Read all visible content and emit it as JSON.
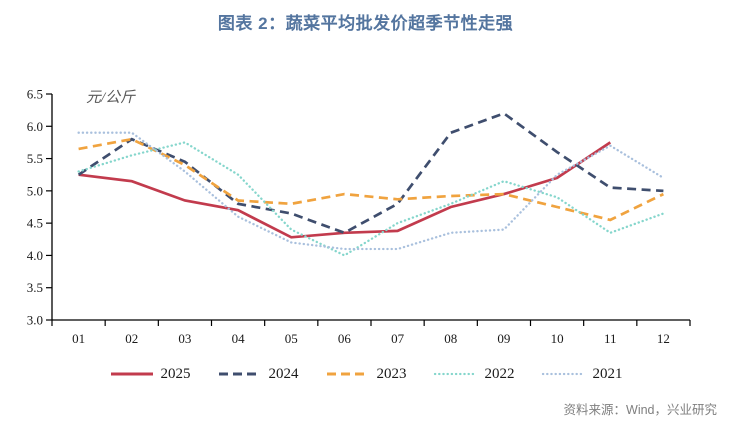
{
  "header": {
    "title": "图表 2：蔬菜平均批发价超季节性走强"
  },
  "footer": {
    "source": "资料来源：Wind，兴业研究"
  },
  "colors": {
    "title_text": "#54759F",
    "source_text": "#7F7F7F",
    "axis": "#000000",
    "unit_text": "#595959"
  },
  "chart_data": {
    "type": "line",
    "title": "图表 2：蔬菜平均批发价超季节性走强",
    "unit_label": "元/公斤",
    "xlabel": "",
    "ylabel": "元/公斤",
    "categories": [
      "01",
      "02",
      "03",
      "04",
      "05",
      "06",
      "07",
      "08",
      "09",
      "10",
      "11",
      "12"
    ],
    "ylim": [
      3.0,
      6.5
    ],
    "ytick_step": 0.5,
    "ytick_labels": [
      "3.0",
      "3.5",
      "4.0",
      "4.5",
      "5.0",
      "5.5",
      "6.0",
      "6.5"
    ],
    "grid": false,
    "legend_position": "bottom",
    "series": [
      {
        "name": "2025",
        "color": "#C23B4D",
        "style": "solid",
        "values": [
          5.25,
          5.15,
          4.85,
          4.7,
          4.28,
          4.35,
          4.38,
          4.75,
          4.95,
          5.2,
          5.75,
          null
        ]
      },
      {
        "name": "2024",
        "color": "#3F4E6E",
        "style": "dashed",
        "values": [
          5.25,
          5.8,
          5.45,
          4.8,
          4.65,
          4.35,
          4.8,
          5.9,
          6.2,
          5.6,
          5.05,
          5.0
        ]
      },
      {
        "name": "2023",
        "color": "#F0A33F",
        "style": "dashed",
        "values": [
          5.65,
          5.8,
          5.4,
          4.85,
          4.8,
          4.95,
          4.87,
          4.92,
          4.95,
          4.75,
          4.55,
          4.95
        ]
      },
      {
        "name": "2022",
        "color": "#85D6CC",
        "style": "dotted",
        "values": [
          5.3,
          5.55,
          5.75,
          5.25,
          4.4,
          4.0,
          4.5,
          4.8,
          5.15,
          4.9,
          4.35,
          4.65
        ]
      },
      {
        "name": "2021",
        "color": "#A9C0DD",
        "style": "dotted",
        "values": [
          5.9,
          5.9,
          5.3,
          4.6,
          4.2,
          4.1,
          4.1,
          4.35,
          4.4,
          5.25,
          5.7,
          5.2
        ]
      }
    ]
  }
}
